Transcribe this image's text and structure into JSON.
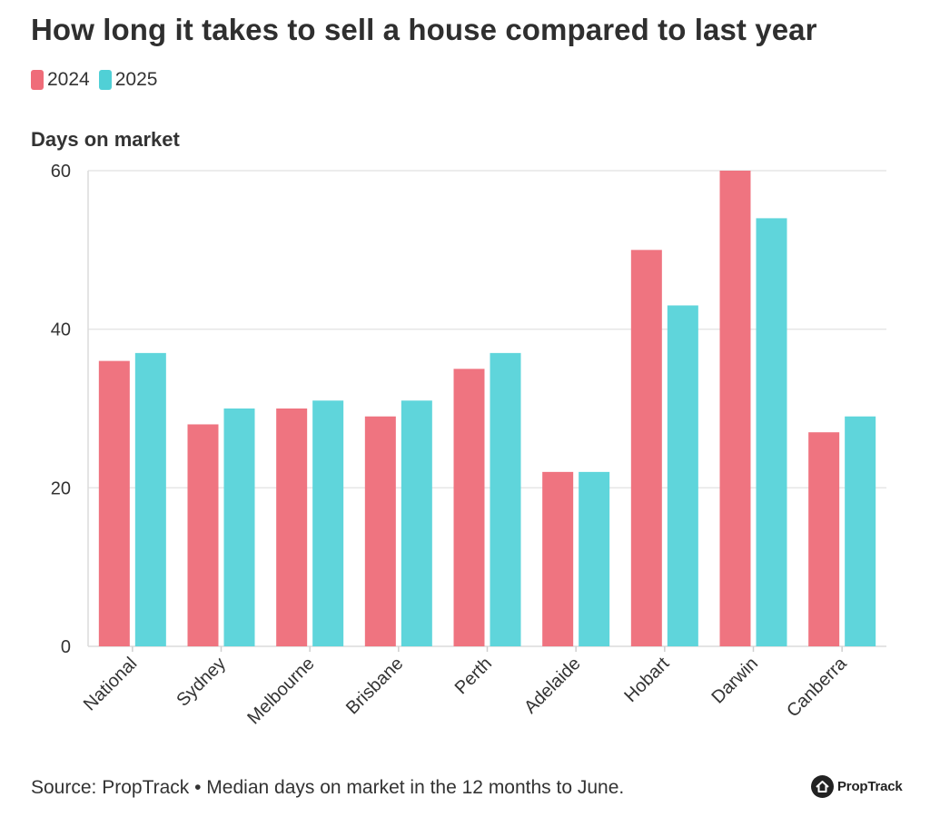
{
  "chart_data": {
    "type": "bar",
    "title": "How long it takes to sell a house compared to last year",
    "ylabel": "Days on market",
    "xlabel": "",
    "categories": [
      "National",
      "Sydney",
      "Melbourne",
      "Brisbane",
      "Perth",
      "Adelaide",
      "Hobart",
      "Darwin",
      "Canberra"
    ],
    "series": [
      {
        "name": "2024",
        "color": "#ef7480",
        "values": [
          36,
          28,
          30,
          29,
          35,
          22,
          50,
          60,
          27
        ]
      },
      {
        "name": "2025",
        "color": "#5fd5db",
        "values": [
          37,
          30,
          31,
          31,
          37,
          22,
          43,
          54,
          29
        ]
      }
    ],
    "ylim": [
      0,
      60
    ],
    "yticks": [
      0,
      20,
      40,
      60
    ],
    "grid": true,
    "legend_position": "top-left"
  },
  "footer": {
    "source": "Source: PropTrack • Median days on market in the 12 months to June."
  },
  "logo": {
    "text": "PropTrack",
    "icon": "house-icon"
  }
}
